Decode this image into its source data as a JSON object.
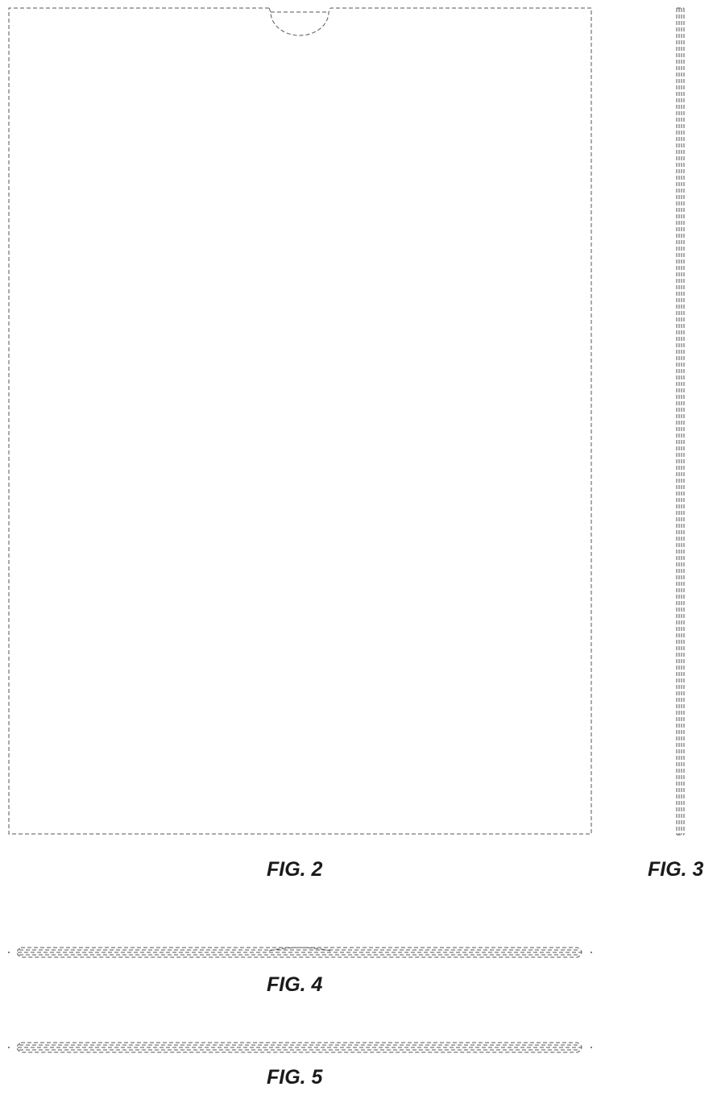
{
  "figures": [
    {
      "id": "fig2",
      "label": "FIG. 2",
      "view": "front"
    },
    {
      "id": "fig3",
      "label": "FIG. 3",
      "view": "side"
    },
    {
      "id": "fig4",
      "label": "FIG. 4",
      "view": "top"
    },
    {
      "id": "fig5",
      "label": "FIG. 5",
      "view": "bottom"
    }
  ],
  "colors": {
    "line": "#555555",
    "text": "#1a1a1a",
    "background": "#ffffff"
  }
}
